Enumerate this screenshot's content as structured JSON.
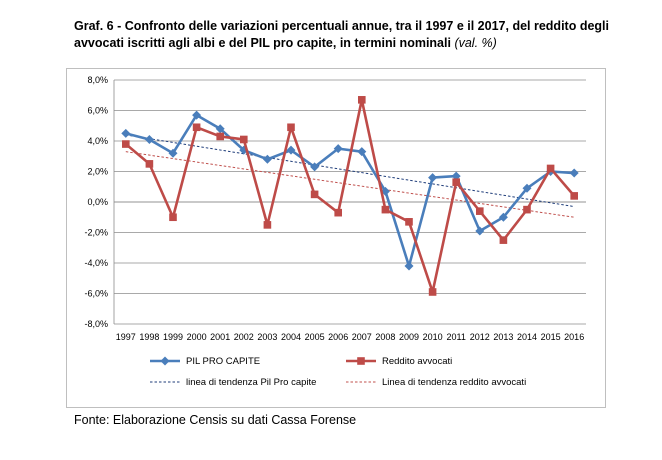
{
  "title": {
    "main": "Graf. 6 - Confronto delle variazioni percentuali annue, tra il 1997 e il 2017, del reddito degli avvocati iscritti agli albi e del PIL pro capite, in termini nominali",
    "unit": "(val. %)"
  },
  "source": "Fonte: Elaborazione Censis su dati Cassa Forense",
  "chart_data": {
    "type": "line",
    "x": [
      "1997",
      "1998",
      "1999",
      "2000",
      "2001",
      "2002",
      "2003",
      "2004",
      "2005",
      "2006",
      "2007",
      "2008",
      "2009",
      "2010",
      "2011",
      "2012",
      "2013",
      "2014",
      "2015",
      "2016"
    ],
    "ylim": [
      -8,
      8
    ],
    "yticks": [
      8,
      6,
      4,
      2,
      0,
      -2,
      -4,
      -6,
      -8
    ],
    "ytick_labels": [
      "8,0%",
      "6,0%",
      "4,0%",
      "2,0%",
      "0,0%",
      "-2,0%",
      "-4,0%",
      "-6,0%",
      "-8,0%"
    ],
    "grid": true,
    "legend_position": "bottom",
    "series": [
      {
        "name": "PIL PRO CAPITE",
        "color": "#4a7ebb",
        "marker": "diamond",
        "values": [
          4.5,
          4.1,
          3.2,
          5.7,
          4.8,
          3.4,
          2.8,
          3.4,
          2.3,
          3.5,
          3.3,
          0.7,
          -4.2,
          1.6,
          1.7,
          -1.9,
          -1.0,
          0.9,
          2.0,
          1.9
        ]
      },
      {
        "name": "Reddito avvocati",
        "color": "#be4b48",
        "marker": "square",
        "values": [
          3.8,
          2.5,
          -1.0,
          4.9,
          4.3,
          4.1,
          -1.5,
          4.9,
          0.5,
          -0.7,
          6.7,
          -0.5,
          -1.3,
          -5.9,
          1.3,
          -0.6,
          -2.5,
          -0.5,
          2.2,
          0.4
        ]
      }
    ],
    "trendlines": [
      {
        "name": "linea di tendenza Pil Pro capite",
        "color": "#1f3d7a",
        "from": 4.4,
        "to": -0.3
      },
      {
        "name": "Linea di tendenza reddito avvocati",
        "color": "#c0504d",
        "from": 3.3,
        "to": -1.0
      }
    ]
  }
}
